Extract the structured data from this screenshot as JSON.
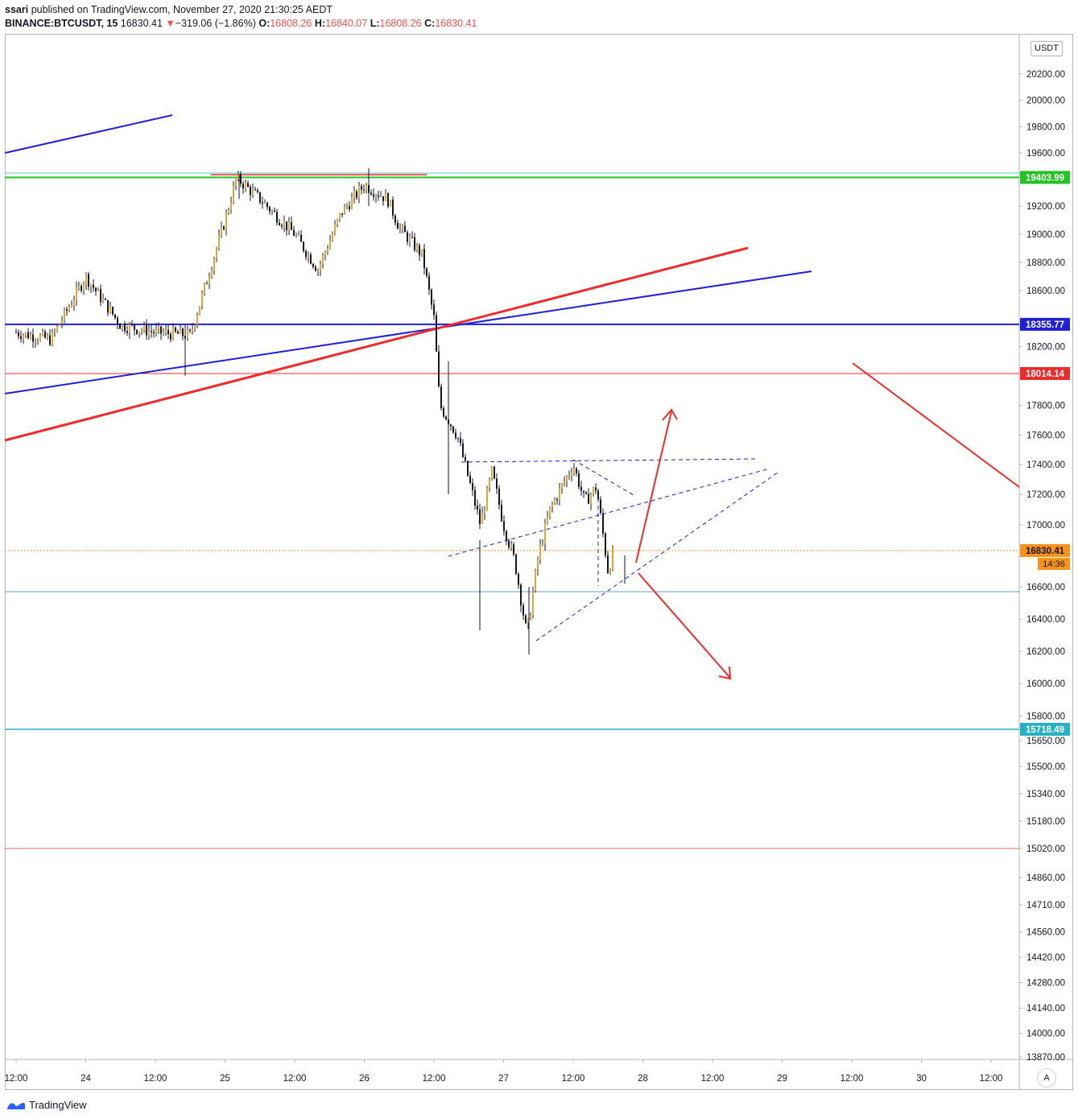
{
  "header": {
    "publisher": "ssari",
    "published_text": "published on TradingView.com, November 27, 2020 21:30:25 AEDT",
    "symbol": "BINANCE:BTCUSDT, 15",
    "last": "16830.41",
    "change_arrow": "▼",
    "change": "−319.06 (−1.86%)",
    "o_label": "O:",
    "o_value": "16808.26",
    "h_label": "H:",
    "h_value": "16840.07",
    "l_label": "L:",
    "l_value": "16808.26",
    "c_label": "C:",
    "c_value": "16830.41"
  },
  "price_axis": {
    "currency_badge": "USDT",
    "countdown": "14:36",
    "auto_label": "A"
  },
  "footer": {
    "brand": "TradingView",
    "brand_icon": "tradingview-logo-icon"
  },
  "colors": {
    "up": "#e0a53b",
    "down": "#131722",
    "blue": "#1f1fd6",
    "red": "#ee2b2b",
    "green": "#22c322",
    "teal": "#26b0c4",
    "orange": "#f7931a"
  },
  "chart_data": {
    "type": "candlestick",
    "symbol": "BINANCE:BTCUSDT",
    "interval": "15",
    "y_ticks": [
      "20200.00",
      "20000.00",
      "19800.00",
      "19600.00",
      "19200.00",
      "19000.00",
      "18800.00",
      "18600.00",
      "18200.00",
      "17800.00",
      "17600.00",
      "17400.00",
      "17200.00",
      "17000.00",
      "16600.00",
      "16400.00",
      "16200.00",
      "16000.00",
      "15800.00",
      "15650.00",
      "15500.00",
      "15340.00",
      "15180.00",
      "15020.00",
      "14860.00",
      "14710.00",
      "14560.00",
      "14420.00",
      "14280.00",
      "14140.00",
      "14000.00",
      "13870.00"
    ],
    "x_ticks": [
      "12:00",
      "24",
      "12:00",
      "25",
      "12:00",
      "26",
      "12:00",
      "27",
      "12:00",
      "28",
      "12:00",
      "29",
      "12:00",
      "30",
      "12:00"
    ],
    "price_labels": [
      {
        "value": "19403.99",
        "color": "#22c322"
      },
      {
        "value": "18355.77",
        "color": "#1f1fd6"
      },
      {
        "value": "18014.14",
        "color": "#ee2b2b"
      },
      {
        "value": "16830.41",
        "color": "#f7931a"
      },
      {
        "value": "15718.49",
        "color": "#26b0c4"
      }
    ],
    "horizontal_levels": [
      19403.99,
      18355.77,
      18014.14,
      16830.41,
      16570,
      15718.49,
      15020
    ],
    "price_path": [
      [
        "23 12:00",
        18300
      ],
      [
        "23 18:00",
        18250
      ],
      [
        "24 00:00",
        18700
      ],
      [
        "24 06:00",
        18350
      ],
      [
        "24 12:00",
        18300
      ],
      [
        "24 18:00",
        18280
      ],
      [
        "25 00:00",
        19100
      ],
      [
        "25 02:00",
        19400
      ],
      [
        "25 06:00",
        19250
      ],
      [
        "25 12:00",
        19000
      ],
      [
        "25 16:00",
        18750
      ],
      [
        "25 20:00",
        19150
      ],
      [
        "26 00:00",
        19350
      ],
      [
        "26 04:00",
        19250
      ],
      [
        "26 06:00",
        19050
      ],
      [
        "26 10:00",
        18850
      ],
      [
        "26 12:00",
        18400
      ],
      [
        "26 13:00",
        17800
      ],
      [
        "26 16:00",
        17600
      ],
      [
        "26 20:00",
        17000
      ],
      [
        "26 22:00",
        17350
      ],
      [
        "27 00:00",
        17000
      ],
      [
        "27 02:00",
        16750
      ],
      [
        "27 04:00",
        16300
      ],
      [
        "27 06:00",
        16800
      ],
      [
        "27 08:00",
        17100
      ],
      [
        "27 12:00",
        17400
      ],
      [
        "27 14:00",
        17150
      ],
      [
        "27 16:00",
        17250
      ],
      [
        "27 18:00",
        16700
      ],
      [
        "27 19:00",
        16830.41
      ]
    ]
  }
}
